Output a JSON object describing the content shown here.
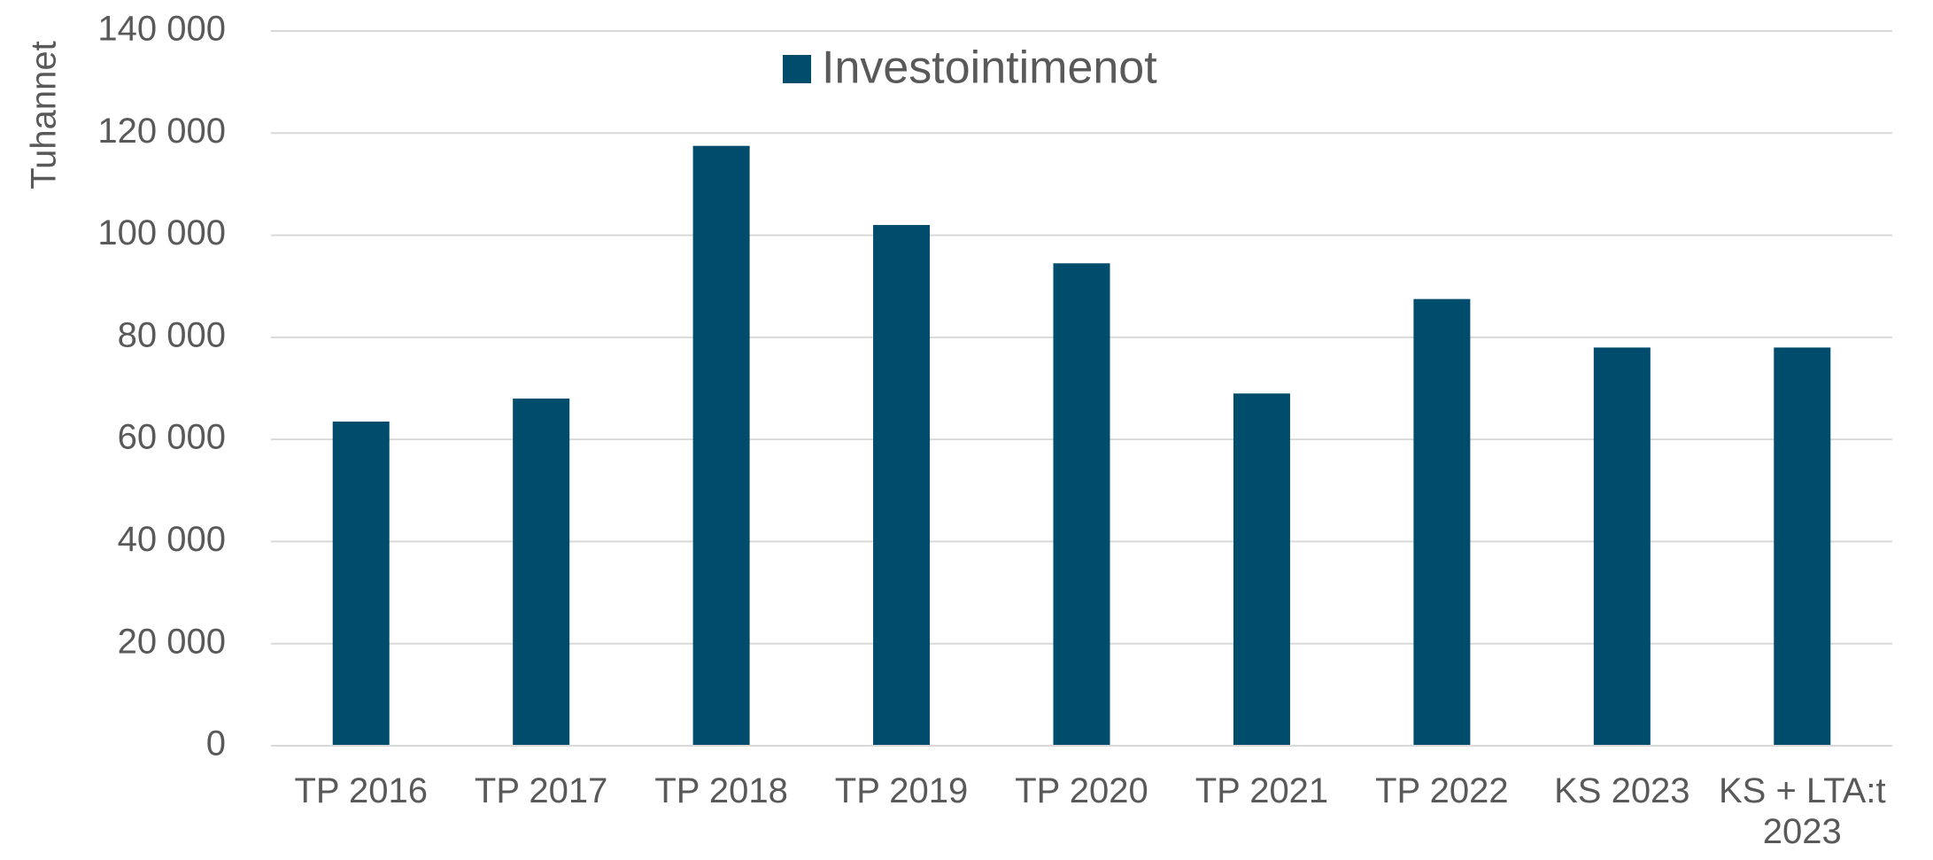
{
  "chart_data": {
    "type": "bar",
    "y_axis_label": "Tuhannet",
    "legend": "Investointimenot",
    "categories": [
      "TP 2016",
      "TP 2017",
      "TP 2018",
      "TP 2019",
      "TP 2020",
      "TP 2021",
      "TP 2022",
      "KS 2023",
      "KS + LTA:t 2023"
    ],
    "values": [
      63500,
      68000,
      117500,
      102000,
      94500,
      69000,
      87500,
      78000,
      78000
    ],
    "color": "#004c6d",
    "ylim": [
      0,
      140000
    ],
    "yticks": [
      0,
      {
        "value": 20000,
        "label": "20 000"
      },
      {
        "value": 40000,
        "label": "40 000"
      },
      {
        "value": 60000,
        "label": "60 000"
      },
      {
        "value": 80000,
        "label": "80 000"
      },
      {
        "value": 100000,
        "label": "100 000"
      },
      {
        "value": 120000,
        "label": "120 000"
      },
      {
        "value": 140000,
        "label": "140 000"
      }
    ],
    "grid": true
  }
}
